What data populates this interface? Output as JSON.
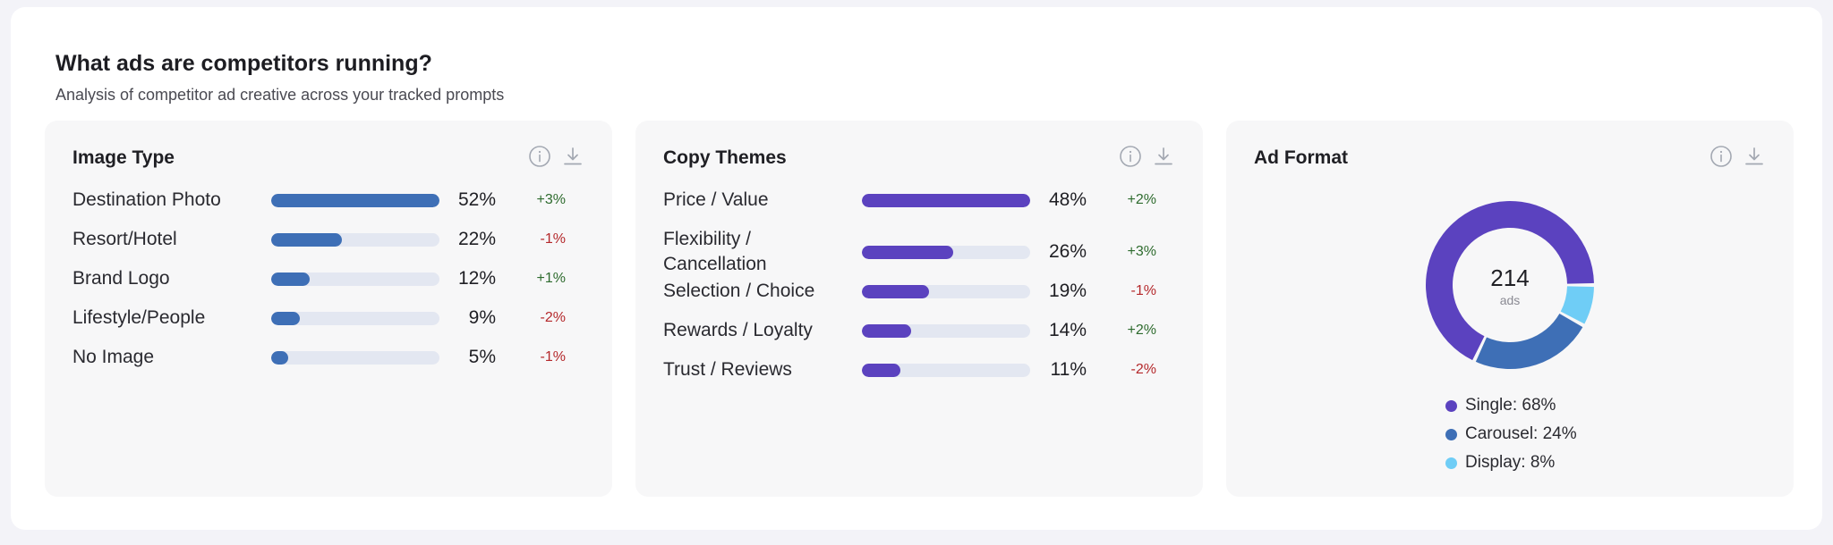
{
  "header": {
    "title": "What ads are competitors running?",
    "subtitle": "Analysis of competitor ad creative across your tracked prompts"
  },
  "colors": {
    "blue": "#3e6fb6",
    "purple": "#5b42bf",
    "light_blue": "#6fcdf6",
    "positive": "#2e6b2e",
    "negative": "#b4282b"
  },
  "image_type": {
    "title": "Image Type",
    "rows": [
      {
        "label": "Destination Photo",
        "pct": "52%",
        "delta": "+3%",
        "fraction": 1.0
      },
      {
        "label": "Resort/Hotel",
        "pct": "22%",
        "delta": "-1%",
        "fraction": 0.42
      },
      {
        "label": "Brand Logo",
        "pct": "12%",
        "delta": "+1%",
        "fraction": 0.23
      },
      {
        "label": "Lifestyle/People",
        "pct": "9%",
        "delta": "-2%",
        "fraction": 0.17
      },
      {
        "label": "No Image",
        "pct": "5%",
        "delta": "-1%",
        "fraction": 0.1
      }
    ]
  },
  "copy_themes": {
    "title": "Copy Themes",
    "rows": [
      {
        "label": "Price / Value",
        "pct": "48%",
        "delta": "+2%",
        "fraction": 1.0
      },
      {
        "label": "Flexibility / Cancellation",
        "pct": "26%",
        "delta": "+3%",
        "fraction": 0.54
      },
      {
        "label": "Selection / Choice",
        "pct": "19%",
        "delta": "-1%",
        "fraction": 0.4
      },
      {
        "label": "Rewards / Loyalty",
        "pct": "14%",
        "delta": "+2%",
        "fraction": 0.29
      },
      {
        "label": "Trust / Reviews",
        "pct": "11%",
        "delta": "-2%",
        "fraction": 0.23
      }
    ]
  },
  "ad_format": {
    "title": "Ad Format",
    "total": "214",
    "total_unit": "ads",
    "legend": [
      "Single: 68%",
      "Carousel: 24%",
      "Display: 8%"
    ]
  },
  "chart_data": {
    "type": "pie",
    "title": "Ad Format",
    "categories": [
      "Single",
      "Carousel",
      "Display"
    ],
    "values": [
      68,
      24,
      8
    ],
    "colors": [
      "#5b42bf",
      "#3e6fb6",
      "#6fcdf6"
    ]
  }
}
